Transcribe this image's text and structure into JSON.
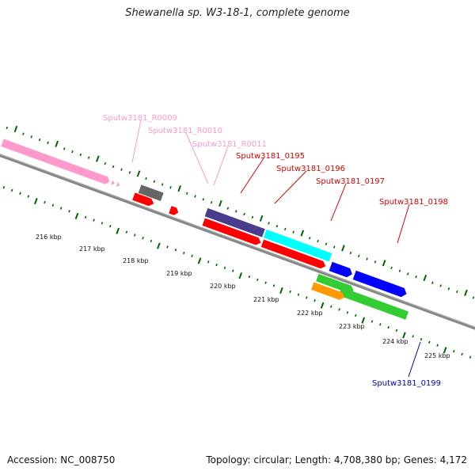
{
  "title": "Shewanella sp. W3-18-1, complete genome",
  "footer": {
    "accession": "Accession: NC_008750",
    "topology": "Topology: circular; Length: 4,708,380 bp; Genes: 4,172"
  },
  "ruler_labels": [
    "216 kbp",
    "217 kbp",
    "218 kbp",
    "219 kbp",
    "220 kbp",
    "221 kbp",
    "222 kbp",
    "223 kbp",
    "224 kbp",
    "225 kbp"
  ],
  "gene_labels": [
    {
      "text": "Sputw3181_R0009",
      "color": "#ff99cc"
    },
    {
      "text": "Sputw3181_R0010",
      "color": "#ff99cc"
    },
    {
      "text": "Sputw3181_R0011",
      "color": "#ff99cc"
    },
    {
      "text": "Sputw3181_0195",
      "color": "#dd0000"
    },
    {
      "text": "Sputw3181_0196",
      "color": "#dd0000"
    },
    {
      "text": "Sputw3181_0197",
      "color": "#dd0000"
    },
    {
      "text": "Sputw3181_0198",
      "color": "#dd0000"
    },
    {
      "text": "Sputw3181_0199",
      "color": "#0000cc"
    }
  ],
  "colors": {
    "rRNA": "#ff99cc",
    "gray_gene": "#666666",
    "red_gene": "#ff0000",
    "purple_gene": "#483d8b",
    "cyan_gene": "#00ffff",
    "blue_gene": "#0000ff",
    "green_gene": "#33cc33",
    "orange_gene": "#ff9900",
    "backbone": "#808080",
    "ticks": "#006600"
  }
}
